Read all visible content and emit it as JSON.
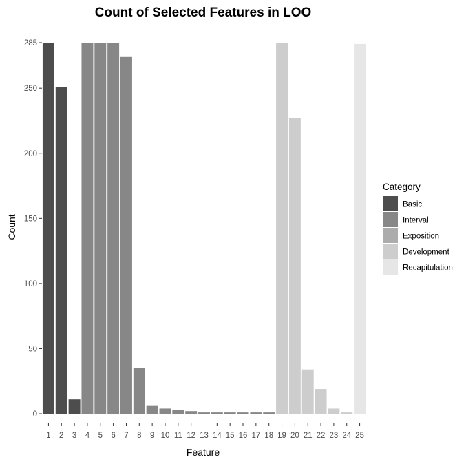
{
  "chart_data": {
    "type": "bar",
    "title": "Count of Selected Features in LOO",
    "xlabel": "Feature",
    "ylabel": "Count",
    "ylim": [
      0,
      285
    ],
    "yticks": [
      0,
      50,
      100,
      150,
      200,
      250,
      285
    ],
    "grid": false,
    "legend_placement": "right",
    "legend_title": "Category",
    "categories_order": [
      "Basic",
      "Interval",
      "Exposition",
      "Development",
      "Recapitulation"
    ],
    "category_colors": {
      "Basic": "#4d4d4d",
      "Interval": "#878787",
      "Exposition": "#acacac",
      "Development": "#cdcdcd",
      "Recapitulation": "#e6e6e6"
    },
    "x": [
      "1",
      "2",
      "3",
      "4",
      "5",
      "6",
      "7",
      "8",
      "9",
      "10",
      "11",
      "12",
      "13",
      "14",
      "15",
      "16",
      "17",
      "18",
      "19",
      "20",
      "21",
      "22",
      "23",
      "24",
      "25"
    ],
    "values": [
      285,
      251,
      11,
      285,
      285,
      285,
      274,
      35,
      6,
      4,
      3,
      2,
      1,
      1,
      1,
      1,
      1,
      1,
      285,
      227,
      34,
      19,
      4,
      1,
      284
    ],
    "category_of_bar": [
      "Basic",
      "Basic",
      "Basic",
      "Interval",
      "Interval",
      "Interval",
      "Interval",
      "Interval",
      "Interval",
      "Interval",
      "Interval",
      "Interval",
      "Interval",
      "Interval",
      "Interval",
      "Interval",
      "Interval",
      "Interval",
      "Development",
      "Development",
      "Development",
      "Development",
      "Development",
      "Development",
      "Recapitulation"
    ]
  }
}
